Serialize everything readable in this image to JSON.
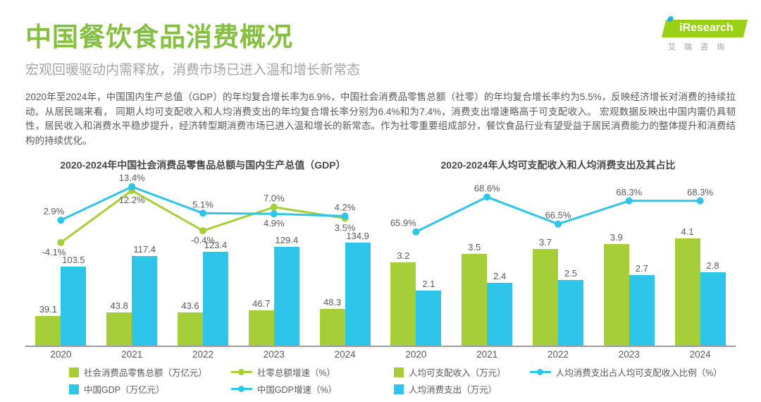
{
  "page": {
    "title": "中国餐饮食品消费概况",
    "subtitle": "宏观回暖驱动内需释放，消费市场已进入温和增长新常态",
    "body": "2020年至2024年，中国国内生产总值（GDP）的年均复合增长率为6.9%，中国社会消费品零售总额（社零）的年均复合增长率约为5.5%，反映经济增长对消费的持续拉动。从居民端来看， 同期人均可支配收入和人均消费支出的年均复合增长率分别为6.4%和为7.4%，消费支出增速略高于可支配收入。 宏观数据反映出中国内需仍具韧性，居民收入和消费水平稳步提升，经济转型期消费市场已进入温和增长的新常态。作为社零重要组成部分，餐饮食品行业有望受益于居民消费能力的整体提升和消费结构的持续优化。"
  },
  "logo": {
    "i": "i",
    "rest": "Research",
    "caption": "艾瑞咨询"
  },
  "colors": {
    "green": "#a5ce39",
    "blue": "#2fc4e9",
    "title_green": "#86c042",
    "subtitle_gray": "#a2a6a3",
    "text_gray": "#595959",
    "axis_gray": "#9e9e9e",
    "logo_green": "#9ad015",
    "logo_blue": "#29abe2"
  },
  "chart_data": [
    {
      "type": "bar+line",
      "title": "2020-2024年中国社会消费品零售品总额与国内生产总值（GDP）",
      "categories": [
        "2020",
        "2021",
        "2022",
        "2023",
        "2024"
      ],
      "bar_series": [
        {
          "name": "社会消费品零售总额（万亿元）",
          "color": "green",
          "values": [
            39.1,
            43.8,
            43.6,
            46.7,
            48.3
          ]
        },
        {
          "name": "中国GDP（万亿元）",
          "color": "blue",
          "values": [
            103.5,
            117.4,
            123.4,
            129.4,
            134.9
          ]
        }
      ],
      "line_series": [
        {
          "name": "社零总额增速（%）",
          "color": "green",
          "values": [
            -4.1,
            12.2,
            -0.4,
            7.0,
            3.5
          ],
          "labels": [
            "-4.1%",
            "12.2%",
            "-0.4%",
            "7.0%",
            "3.5%"
          ]
        },
        {
          "name": "中国GDP增速（%）",
          "color": "blue",
          "values": [
            2.9,
            13.4,
            5.1,
            4.9,
            4.2
          ],
          "labels": [
            "2.9%",
            "13.4%",
            "5.1%",
            "4.9%",
            "4.2%"
          ]
        }
      ],
      "ylim_bars": [
        0,
        140
      ],
      "ylim_lines": [
        -5,
        14
      ],
      "legend_position": "bottom",
      "grid": false
    },
    {
      "type": "bar+line",
      "title": "2020-2024年人均可支配收入和人均消费支出及其占比",
      "categories": [
        "2020",
        "2021",
        "2022",
        "2023",
        "2024"
      ],
      "bar_series": [
        {
          "name": "人均可支配收入（万元）",
          "color": "green",
          "values": [
            3.2,
            3.5,
            3.7,
            3.9,
            4.1
          ]
        },
        {
          "name": "人均消费支出（万元）",
          "color": "blue",
          "values": [
            2.1,
            2.4,
            2.5,
            2.7,
            2.8
          ]
        }
      ],
      "line_series": [
        {
          "name": "人均消费支出占人均可支配收入比例（%）",
          "color": "blue",
          "values": [
            65.9,
            68.6,
            66.5,
            68.3,
            68.3
          ],
          "labels": [
            "65.9%",
            "68.6%",
            "66.5%",
            "68.3%",
            "68.3%"
          ]
        }
      ],
      "ylim_bars": [
        0,
        4.5
      ],
      "ylim_lines": [
        65.5,
        69
      ],
      "legend_position": "bottom",
      "grid": false
    }
  ]
}
